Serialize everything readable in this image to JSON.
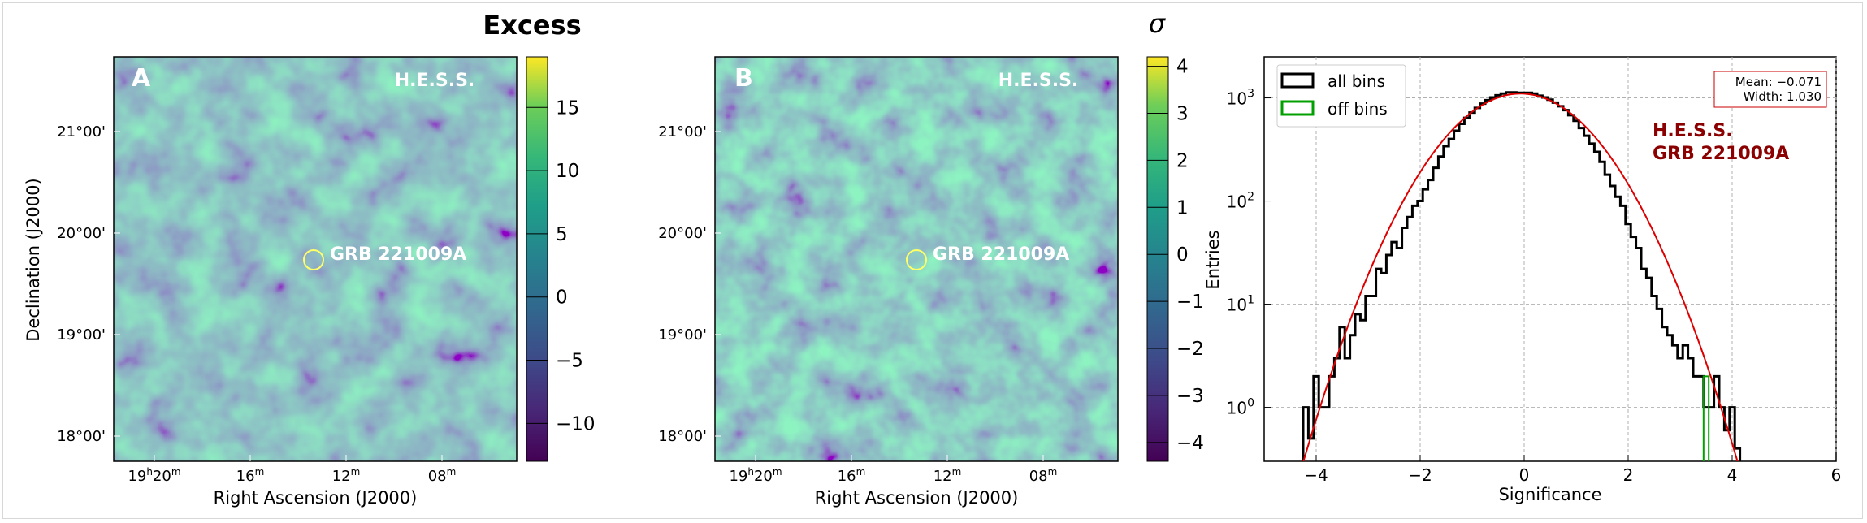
{
  "figure": {
    "panel_a": {
      "title": "Excess",
      "panel_label": "A",
      "watermark": "H.E.S.S.",
      "source_label": "GRB 221009A",
      "xlabel": "Right Ascension (J2000)",
      "ylabel": "Declination (J2000)",
      "x_ticks": [
        {
          "text_main": "19",
          "sup1": "h",
          "text_2": "20",
          "sup2": "m"
        },
        {
          "text_main": "16",
          "sup1": "m",
          "text_2": "",
          "sup2": ""
        },
        {
          "text_main": "12",
          "sup1": "m",
          "text_2": "",
          "sup2": ""
        },
        {
          "text_main": "08",
          "sup1": "m",
          "text_2": "",
          "sup2": ""
        }
      ],
      "y_ticks": [
        "21°00'",
        "20°00'",
        "19°00'",
        "18°00'"
      ],
      "colorbar_ticks": [
        "15",
        "10",
        "5",
        "0",
        "−5",
        "−10"
      ],
      "colorbar_range": [
        -13,
        19
      ],
      "colorbar_tick_values": [
        15,
        10,
        5,
        0,
        -5,
        -10
      ]
    },
    "panel_b": {
      "title": "σ",
      "panel_label": "B",
      "watermark": "H.E.S.S.",
      "source_label": "GRB 221009A",
      "xlabel": "Right Ascension (J2000)",
      "y_ticks": [
        "21°00'",
        "20°00'",
        "19°00'",
        "18°00'"
      ],
      "colorbar_ticks": [
        "4",
        "3",
        "2",
        "1",
        "0",
        "−1",
        "−2",
        "−3",
        "−4"
      ],
      "colorbar_range": [
        -4.4,
        4.2
      ],
      "colorbar_tick_values": [
        4,
        3,
        2,
        1,
        0,
        -1,
        -2,
        -3,
        -4
      ]
    },
    "panel_c": {
      "xlabel": "Significance",
      "ylabel": "Entries",
      "legend": [
        "all bins",
        "off bins"
      ],
      "stats_mean": "Mean: −0.071",
      "stats_width": "Width: 1.030",
      "label_line1": "H.E.S.S.",
      "label_line2": "GRB 221009A"
    },
    "colors": {
      "hist_all": "#000000",
      "hist_off": "#00a000",
      "fit": "#dd0000",
      "label": "#8b0000",
      "source_circle": "#ffff66"
    }
  },
  "chart_data": [
    {
      "type": "heatmap",
      "title": "Excess",
      "xlabel": "Right Ascension (J2000)",
      "ylabel": "Declination (J2000)",
      "x_ticks": [
        "19h20m",
        "16m",
        "12m",
        "08m"
      ],
      "y_ticks": [
        "21°00'",
        "20°00'",
        "19°00'",
        "18°00'"
      ],
      "colorscale": "viridis",
      "zlim": [
        -13,
        19
      ],
      "annotation": "GRB 221009A"
    },
    {
      "type": "heatmap",
      "title": "σ",
      "xlabel": "Right Ascension (J2000)",
      "ylabel": "",
      "x_ticks": [
        "19h20m",
        "16m",
        "12m",
        "08m"
      ],
      "y_ticks": [
        "21°00'",
        "20°00'",
        "19°00'",
        "18°00'"
      ],
      "colorscale": "viridis",
      "zlim": [
        -4.4,
        4.2
      ],
      "annotation": "GRB 221009A"
    },
    {
      "type": "line",
      "xlabel": "Significance",
      "ylabel": "Entries",
      "xlim": [
        -5,
        6
      ],
      "ylim": [
        0.3,
        2500
      ],
      "yscale": "log",
      "x_ticks": [
        -4,
        -2,
        0,
        2,
        4,
        6
      ],
      "y_ticks": [
        "10^0",
        "10^1",
        "10^2",
        "10^3"
      ],
      "grid": true,
      "legend_position": "top-left",
      "fit": {
        "mean": -0.071,
        "width": 1.03,
        "amplitude": 1100
      },
      "series": [
        {
          "name": "all bins",
          "x": [
            -4.2,
            -4.1,
            -4.0,
            -3.9,
            -3.8,
            -3.7,
            -3.6,
            -3.5,
            -3.4,
            -3.3,
            -3.2,
            -3.1,
            -3.0,
            -2.9,
            -2.8,
            -2.7,
            -2.6,
            -2.5,
            -2.4,
            -2.3,
            -2.2,
            -2.1,
            -2.0,
            -1.9,
            -1.8,
            -1.7,
            -1.6,
            -1.5,
            -1.4,
            -1.3,
            -1.2,
            -1.1,
            -1.0,
            -0.9,
            -0.8,
            -0.7,
            -0.6,
            -0.5,
            -0.4,
            -0.3,
            -0.2,
            -0.1,
            0.0,
            0.1,
            0.2,
            0.3,
            0.4,
            0.5,
            0.6,
            0.7,
            0.8,
            0.9,
            1.0,
            1.1,
            1.2,
            1.3,
            1.4,
            1.5,
            1.6,
            1.7,
            1.8,
            1.9,
            2.0,
            2.1,
            2.2,
            2.3,
            2.4,
            2.5,
            2.6,
            2.7,
            2.8,
            2.9,
            3.0,
            3.1,
            3.2,
            3.3,
            3.4,
            3.5,
            3.6,
            3.7,
            3.8,
            3.9,
            4.0,
            4.1
          ],
          "y": [
            1,
            0.5,
            2,
            1,
            1,
            2,
            3,
            6,
            3,
            5,
            8,
            7,
            12,
            12,
            22,
            20,
            30,
            40,
            35,
            55,
            70,
            90,
            100,
            130,
            160,
            210,
            270,
            340,
            400,
            480,
            560,
            640,
            720,
            800,
            880,
            950,
            1010,
            1060,
            1100,
            1130,
            1130,
            1120,
            1120,
            1120,
            1100,
            1050,
            1010,
            960,
            900,
            830,
            760,
            680,
            600,
            510,
            430,
            360,
            300,
            240,
            180,
            140,
            110,
            90,
            60,
            45,
            35,
            22,
            18,
            12,
            9,
            6,
            5,
            4,
            3,
            4,
            3,
            2,
            2,
            1,
            1,
            2,
            1,
            0.6,
            1,
            0.4
          ]
        },
        {
          "name": "off bins",
          "x": [
            3.5
          ],
          "y": [
            2
          ]
        }
      ]
    }
  ]
}
